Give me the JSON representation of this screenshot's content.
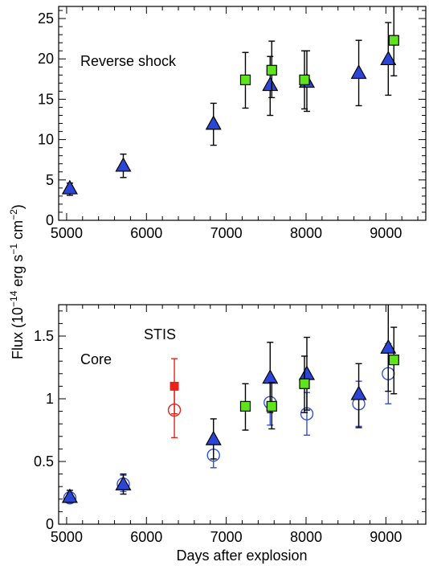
{
  "figure": {
    "xlabel": "Days after explosion",
    "ylabel_main": "Flux (10",
    "ylabel_exp1": "−14",
    "ylabel_mid": " erg s",
    "ylabel_exp2": "−1",
    "ylabel_mid2": " cm",
    "ylabel_exp3": "−2",
    "ylabel_end": ")"
  },
  "chart_data": [
    {
      "type": "scatter",
      "panel": "top",
      "annotation": "Reverse shock",
      "xlim": [
        4900,
        9500
      ],
      "ylim": [
        0,
        26.5
      ],
      "xticks": [
        5000,
        6000,
        7000,
        8000,
        9000
      ],
      "yticks": [
        0,
        5,
        10,
        15,
        20,
        25
      ],
      "xtick_labels": [
        "5000",
        "6000",
        "7000",
        "8000",
        "9000"
      ],
      "ytick_labels": [
        "0",
        "5",
        "10",
        "15",
        "20",
        "25"
      ],
      "series": [
        {
          "marker": "triangle",
          "color": "#2b45d6",
          "points": [
            {
              "x": 5040,
              "y": 4.0,
              "lo": 3.1,
              "hi": 4.6
            },
            {
              "x": 5710,
              "y": 6.8,
              "lo": 5.3,
              "hi": 8.2
            },
            {
              "x": 6840,
              "y": 12.0,
              "lo": 9.3,
              "hi": 14.5
            },
            {
              "x": 7550,
              "y": 16.8,
              "lo": 13.0,
              "hi": 20.3
            },
            {
              "x": 8010,
              "y": 17.2,
              "lo": 13.5,
              "hi": 21.0
            },
            {
              "x": 8660,
              "y": 18.3,
              "lo": 14.2,
              "hi": 22.3
            },
            {
              "x": 9030,
              "y": 20.0,
              "lo": 15.5,
              "hi": 24.5
            }
          ]
        },
        {
          "marker": "square",
          "color": "#5fe31c",
          "points": [
            {
              "x": 7240,
              "y": 17.4,
              "lo": 13.9,
              "hi": 20.8
            },
            {
              "x": 7570,
              "y": 18.6,
              "lo": 15.2,
              "hi": 22.2
            },
            {
              "x": 7980,
              "y": 17.4,
              "lo": 13.8,
              "hi": 21.0
            },
            {
              "x": 9100,
              "y": 22.3,
              "lo": 17.9,
              "hi": 26.7
            }
          ]
        }
      ]
    },
    {
      "type": "scatter",
      "panel": "bottom",
      "annotation": "Core",
      "annotation2": "STIS",
      "xlim": [
        4900,
        9500
      ],
      "ylim": [
        0,
        1.75
      ],
      "xticks": [
        5000,
        6000,
        7000,
        8000,
        9000
      ],
      "yticks": [
        0,
        0.5,
        1,
        1.5
      ],
      "xtick_labels": [
        "5000",
        "6000",
        "7000",
        "8000",
        "9000"
      ],
      "ytick_labels": [
        "0",
        "0.5",
        "1",
        "1.5"
      ],
      "series": [
        {
          "marker": "open-circle",
          "color": "#3050d8",
          "points": [
            {
              "x": 5040,
              "y": 0.21,
              "lo": 0.17,
              "hi": 0.25
            },
            {
              "x": 5710,
              "y": 0.32,
              "lo": 0.26,
              "hi": 0.39
            },
            {
              "x": 6840,
              "y": 0.55,
              "lo": 0.45,
              "hi": 0.65
            },
            {
              "x": 7550,
              "y": 0.97,
              "lo": 0.79,
              "hi": 1.15
            },
            {
              "x": 8010,
              "y": 0.88,
              "lo": 0.71,
              "hi": 1.05
            },
            {
              "x": 8660,
              "y": 0.96,
              "lo": 0.78,
              "hi": 1.14
            },
            {
              "x": 9030,
              "y": 1.2,
              "lo": 0.96,
              "hi": 1.44
            }
          ]
        },
        {
          "marker": "triangle",
          "color": "#2b45d6",
          "points": [
            {
              "x": 5040,
              "y": 0.22,
              "lo": 0.18,
              "hi": 0.27
            },
            {
              "x": 5710,
              "y": 0.32,
              "lo": 0.24,
              "hi": 0.4
            },
            {
              "x": 6840,
              "y": 0.68,
              "lo": 0.52,
              "hi": 0.84
            },
            {
              "x": 7550,
              "y": 1.17,
              "lo": 0.89,
              "hi": 1.45
            },
            {
              "x": 8010,
              "y": 1.2,
              "lo": 0.91,
              "hi": 1.49
            },
            {
              "x": 8660,
              "y": 1.04,
              "lo": 0.77,
              "hi": 1.28
            },
            {
              "x": 9030,
              "y": 1.41,
              "lo": 1.06,
              "hi": 1.78
            }
          ]
        },
        {
          "marker": "square",
          "color": "#5fe31c",
          "points": [
            {
              "x": 7240,
              "y": 0.94,
              "lo": 0.75,
              "hi": 1.12
            },
            {
              "x": 7570,
              "y": 0.94,
              "lo": 0.76,
              "hi": 1.13
            },
            {
              "x": 7980,
              "y": 1.12,
              "lo": 0.89,
              "hi": 1.34
            },
            {
              "x": 9100,
              "y": 1.31,
              "lo": 1.04,
              "hi": 1.57
            }
          ]
        },
        {
          "marker": "open-circle",
          "color": "#e8231c",
          "label": "STIS",
          "points": [
            {
              "x": 6350,
              "y": 0.91,
              "lo": 0.69,
              "hi": 1.12
            }
          ]
        },
        {
          "marker": "filled-square",
          "color": "#e8231c",
          "label": "STIS",
          "points": [
            {
              "x": 6350,
              "y": 1.1,
              "lo": 0.88,
              "hi": 1.32
            }
          ]
        }
      ]
    }
  ]
}
